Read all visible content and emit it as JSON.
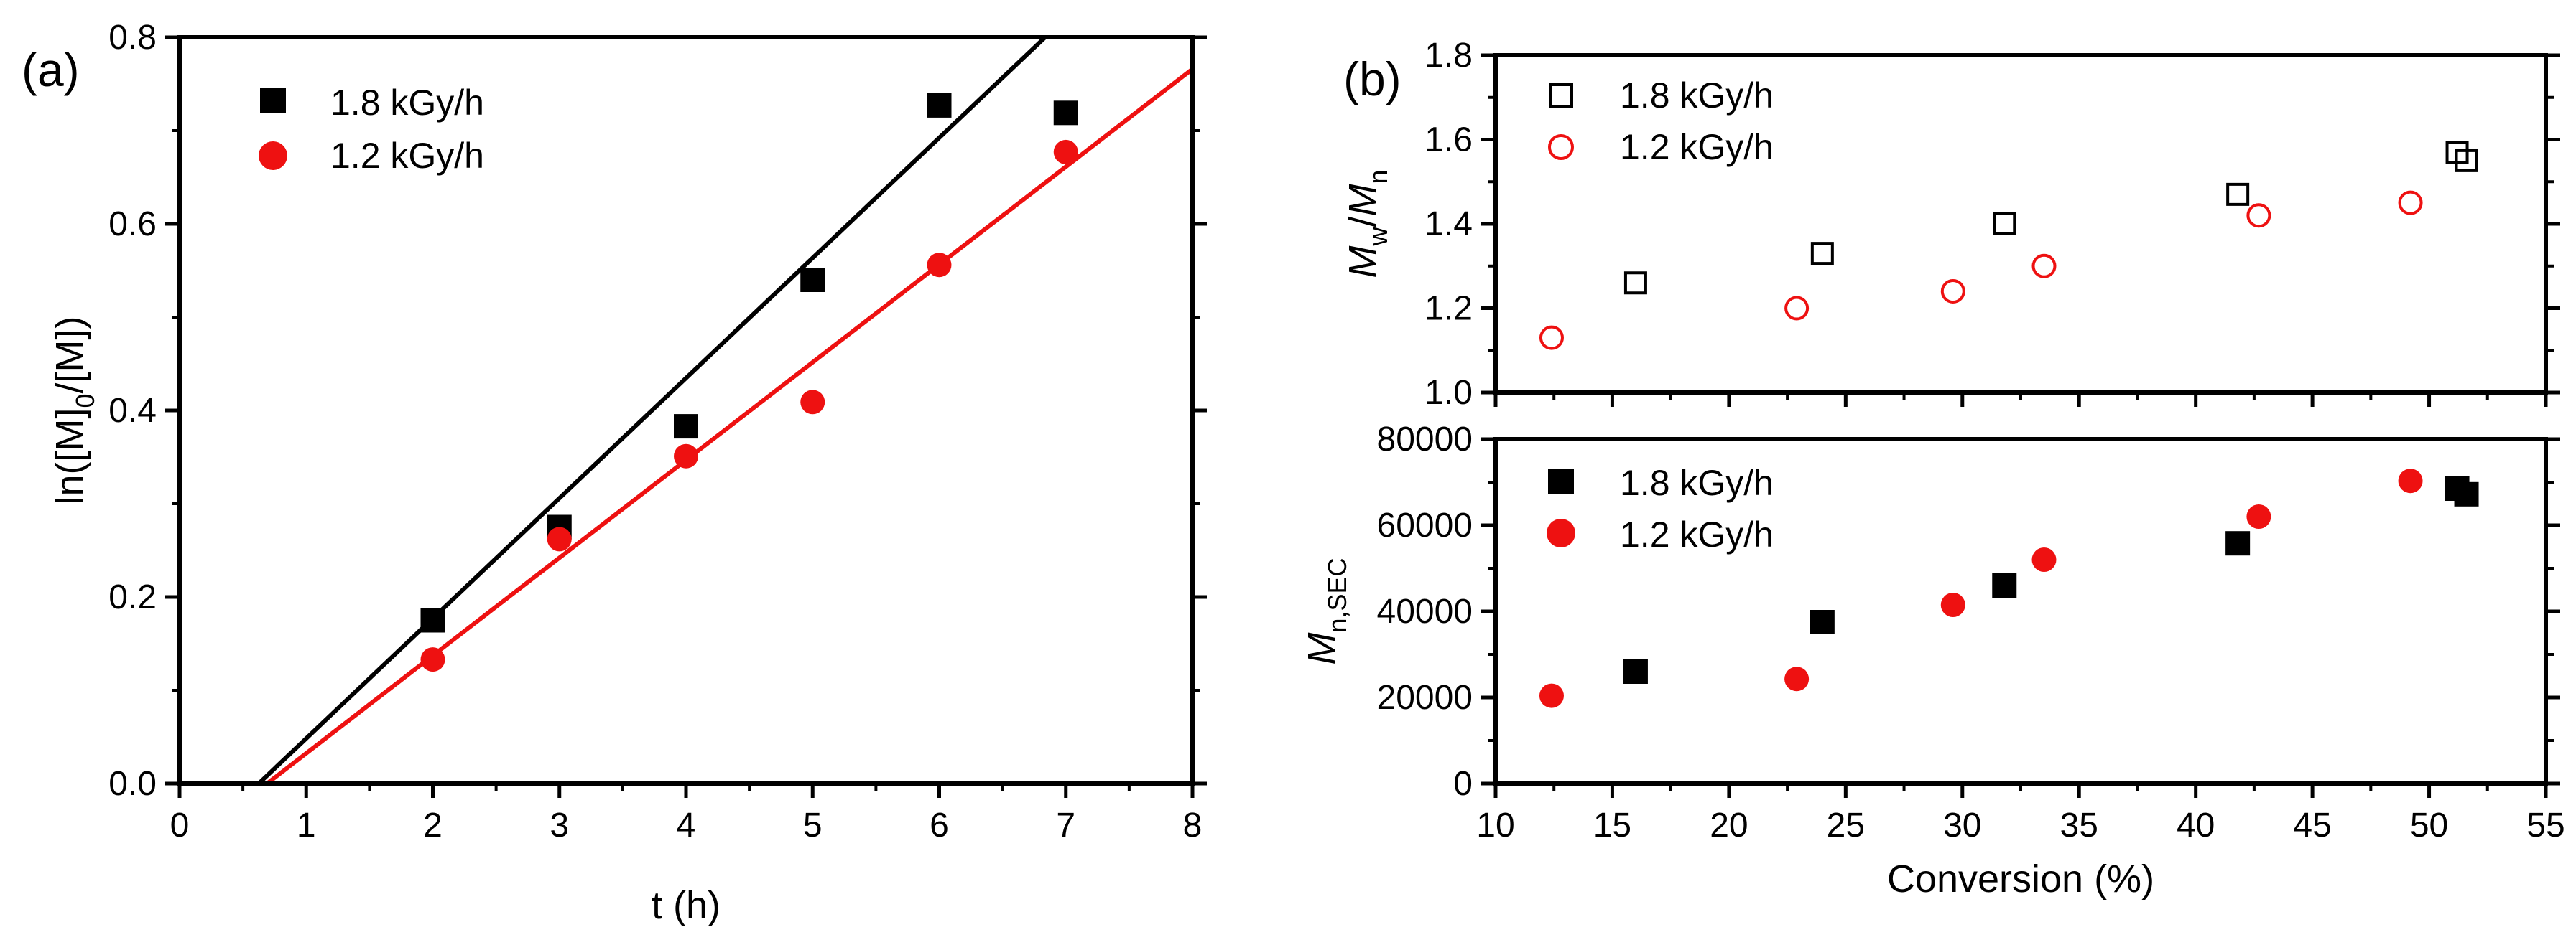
{
  "colors": {
    "black": "#000000",
    "red": "#ee1111"
  },
  "chart_data": [
    {
      "id": "a",
      "panel_label": "(a)",
      "type": "scatter",
      "xlabel": "t (h)",
      "ylabel": {
        "base": "ln([M]",
        "sub": "0",
        "rest": "/[M])"
      },
      "xlim": [
        0,
        8
      ],
      "ylim": [
        0,
        0.8
      ],
      "xticks": [
        0,
        1,
        2,
        3,
        4,
        5,
        6,
        7,
        8
      ],
      "yticks": [
        0.0,
        0.2,
        0.4,
        0.6,
        0.8
      ],
      "ytick_labels": [
        "0.0",
        "0.2",
        "0.4",
        "0.6",
        "0.8"
      ],
      "legend": "top-left",
      "series": [
        {
          "name": "1.8 kGy/h",
          "marker": "square-filled",
          "color": "#000000",
          "x": [
            2,
            3,
            4,
            5,
            6,
            7
          ],
          "y": [
            0.175,
            0.275,
            0.383,
            0.54,
            0.727,
            0.719
          ],
          "fit": {
            "slope": 0.1288,
            "intercept": -0.0805
          }
        },
        {
          "name": "1.2 kGy/h",
          "marker": "circle-filled",
          "color": "#ee1111",
          "x": [
            2,
            3,
            4,
            5,
            6,
            7
          ],
          "y": [
            0.133,
            0.262,
            0.351,
            0.409,
            0.556,
            0.677
          ],
          "fit": {
            "slope": 0.1048,
            "intercept": -0.0724
          }
        }
      ]
    },
    {
      "id": "b_top",
      "panel_label": "(b)",
      "type": "scatter",
      "xlim": [
        10,
        55
      ],
      "ylim": [
        1.0,
        1.8
      ],
      "yticks": [
        1.0,
        1.2,
        1.4,
        1.6,
        1.8
      ],
      "ytick_labels": [
        "1.0",
        "1.2",
        "1.4",
        "1.6",
        "1.8"
      ],
      "ylabel": {
        "M1": "M",
        "s1": "w",
        "slash": "/",
        "M2": "M",
        "s2": "n"
      },
      "legend": "top-left",
      "series": [
        {
          "name": "1.8 kGy/h",
          "marker": "square-open",
          "color": "#000000",
          "x": [
            16.0,
            24.0,
            31.8,
            41.8,
            51.2,
            51.6
          ],
          "y": [
            1.26,
            1.33,
            1.4,
            1.47,
            1.57,
            1.55
          ]
        },
        {
          "name": "1.2 kGy/h",
          "marker": "circle-open",
          "color": "#ee1111",
          "x": [
            12.4,
            22.9,
            29.6,
            33.5,
            42.7,
            49.2
          ],
          "y": [
            1.13,
            1.2,
            1.24,
            1.3,
            1.42,
            1.45
          ]
        }
      ]
    },
    {
      "id": "b_bottom",
      "type": "scatter",
      "xlabel": "Conversion (%)",
      "xlim": [
        10,
        55
      ],
      "ylim": [
        0,
        80000
      ],
      "xticks": [
        10,
        15,
        20,
        25,
        30,
        35,
        40,
        45,
        50,
        55
      ],
      "yticks": [
        0,
        20000,
        40000,
        60000,
        80000
      ],
      "ytick_labels": [
        "0",
        "20000",
        "40000",
        "60000",
        "80000"
      ],
      "ylabel": {
        "M": "M",
        "sub": "n,SEC"
      },
      "legend": "top-left",
      "series": [
        {
          "name": "1.8 kGy/h",
          "marker": "square-filled",
          "color": "#000000",
          "x": [
            16.0,
            24.0,
            31.8,
            41.8,
            51.2,
            51.6
          ],
          "y": [
            26000,
            37500,
            46000,
            55800,
            68500,
            67200
          ]
        },
        {
          "name": "1.2 kGy/h",
          "marker": "circle-filled",
          "color": "#ee1111",
          "x": [
            12.4,
            22.9,
            29.6,
            33.5,
            42.7,
            49.2
          ],
          "y": [
            20400,
            24300,
            41500,
            52000,
            62000,
            70300
          ]
        }
      ]
    }
  ]
}
